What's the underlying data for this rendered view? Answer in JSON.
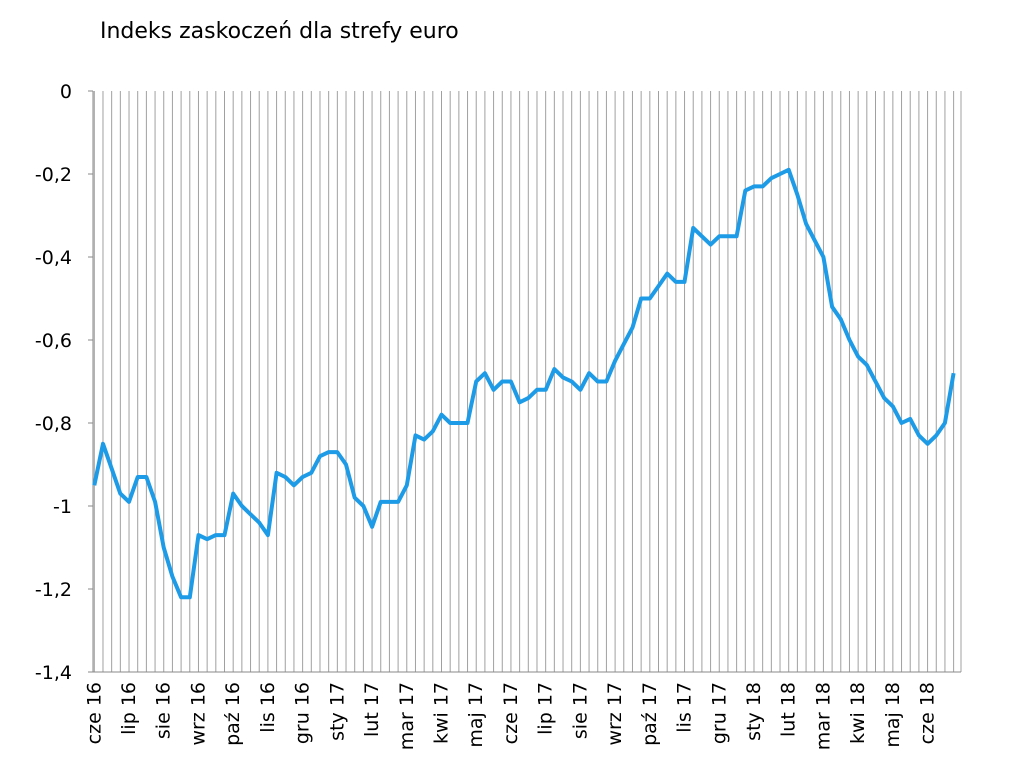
{
  "chart_data": {
    "type": "line",
    "title": "Indeks zaskoczeń dla strefy euro",
    "categories": [
      "cze 16",
      null,
      null,
      null,
      "lip 16",
      null,
      null,
      null,
      "sie 16",
      null,
      null,
      null,
      "wrz 16",
      null,
      null,
      null,
      "paź 16",
      null,
      null,
      null,
      "lis 16",
      null,
      null,
      null,
      "gru 16",
      null,
      null,
      null,
      "sty 17",
      null,
      null,
      null,
      "lut 17",
      null,
      null,
      null,
      "mar 17",
      null,
      null,
      null,
      "kwi 17",
      null,
      null,
      null,
      "maj 17",
      null,
      null,
      null,
      "cze 17",
      null,
      null,
      null,
      "lip 17",
      null,
      null,
      null,
      "sie 17",
      null,
      null,
      null,
      "wrz 17",
      null,
      null,
      null,
      "paź 17",
      null,
      null,
      null,
      "lis 17",
      null,
      null,
      null,
      "gru 17",
      null,
      null,
      null,
      "sty 18",
      null,
      null,
      null,
      "lut 18",
      null,
      null,
      null,
      "mar 18",
      null,
      null,
      null,
      "kwi 18",
      null,
      null,
      null,
      "maj 18",
      null,
      null,
      null,
      "cze 18",
      null,
      null,
      null
    ],
    "series": [
      {
        "name": "Indeks zaskoczeń",
        "color": "#1e9be6",
        "values": [
          -0.95,
          -0.85,
          -0.91,
          -0.97,
          -0.99,
          -0.93,
          -0.93,
          -0.99,
          -1.1,
          -1.17,
          -1.22,
          -1.22,
          -1.07,
          -1.08,
          -1.07,
          -1.07,
          -0.97,
          -1.0,
          -1.02,
          -1.04,
          -1.07,
          -0.92,
          -0.93,
          -0.95,
          -0.93,
          -0.92,
          -0.88,
          -0.87,
          -0.87,
          -0.9,
          -0.98,
          -1.0,
          -1.05,
          -0.99,
          -0.99,
          -0.99,
          -0.95,
          -0.83,
          -0.84,
          -0.82,
          -0.78,
          -0.8,
          -0.8,
          -0.8,
          -0.7,
          -0.68,
          -0.72,
          -0.7,
          -0.7,
          -0.75,
          -0.74,
          -0.72,
          -0.72,
          -0.67,
          -0.69,
          -0.7,
          -0.72,
          -0.68,
          -0.7,
          -0.7,
          -0.65,
          -0.61,
          -0.57,
          -0.5,
          -0.5,
          -0.47,
          -0.44,
          -0.46,
          -0.46,
          -0.33,
          -0.35,
          -0.37,
          -0.35,
          -0.35,
          -0.35,
          -0.24,
          -0.23,
          -0.23,
          -0.21,
          -0.2,
          -0.19,
          -0.25,
          -0.32,
          -0.36,
          -0.4,
          -0.52,
          -0.55,
          -0.6,
          -0.64,
          -0.66,
          -0.7,
          -0.74,
          -0.76,
          -0.8,
          -0.79,
          -0.83,
          -0.85,
          -0.83,
          -0.8,
          -0.68
        ]
      }
    ],
    "ylim": [
      -1.4,
      0
    ],
    "yticks": [
      {
        "value": -1.4,
        "label": "-1,4"
      },
      {
        "value": -1.2,
        "label": "-1,2"
      },
      {
        "value": -1,
        "label": "-1"
      },
      {
        "value": -0.8,
        "label": "-0,8"
      },
      {
        "value": -0.6,
        "label": "-0,6"
      },
      {
        "value": -0.4,
        "label": "-0,4"
      },
      {
        "value": -0.2,
        "label": "-0,2"
      },
      0
    ],
    "grid": true
  }
}
